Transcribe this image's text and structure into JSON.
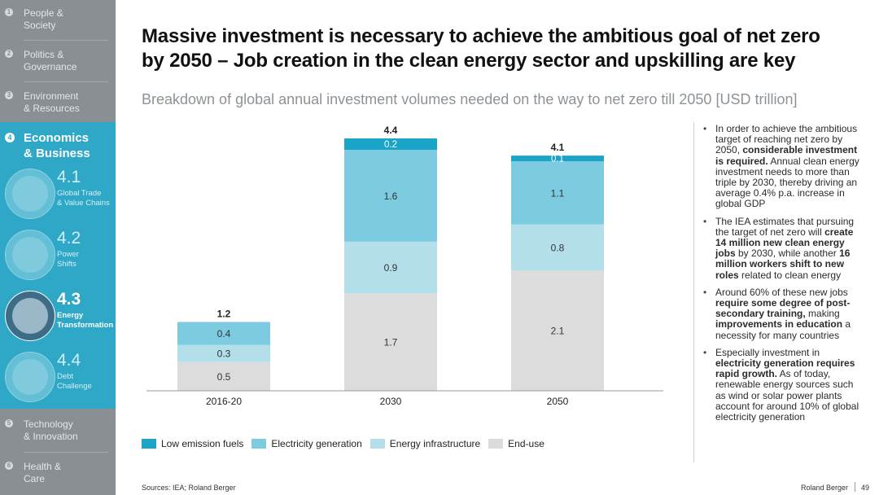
{
  "sidebar": {
    "items": [
      {
        "num": "1",
        "label_line1": "People &",
        "label_line2": "Society"
      },
      {
        "num": "2",
        "label_line1": "Politics &",
        "label_line2": "Governance"
      },
      {
        "num": "3",
        "label_line1": "Environment",
        "label_line2": "& Resources"
      },
      {
        "num": "5",
        "label_line1": "Technology",
        "label_line2": "& Innovation"
      },
      {
        "num": "6",
        "label_line1": "Health &",
        "label_line2": "Care"
      }
    ],
    "active_section": {
      "num": "4",
      "label_line1": "Economics",
      "label_line2": "& Business"
    },
    "subsections": [
      {
        "num": "4.1",
        "label_line1": "Global Trade",
        "label_line2": "& Value Chains"
      },
      {
        "num": "4.2",
        "label_line1": "Power",
        "label_line2": "Shifts"
      },
      {
        "num": "4.3",
        "label_line1": "Energy",
        "label_line2": "Transformation"
      },
      {
        "num": "4.4",
        "label_line1": "Debt",
        "label_line2": "Challenge"
      }
    ]
  },
  "header": {
    "title_line1": "Massive investment is necessary to achieve the ambitious goal of net zero",
    "title_line2": "by 2050 – Job creation in the clean energy sector and upskilling are key",
    "subtitle": "Breakdown of global annual investment volumes needed on the way to net zero till 2050 [USD trillion]"
  },
  "chart_data": {
    "type": "bar",
    "stacked": true,
    "categories": [
      "2016-20",
      "2030",
      "2050"
    ],
    "series": [
      {
        "name": "End-use",
        "values": [
          0.5,
          1.7,
          2.1
        ],
        "color": "#dcdcdc"
      },
      {
        "name": "Energy infrastructure",
        "values": [
          0.3,
          0.9,
          0.8
        ],
        "color": "#b3dfeb"
      },
      {
        "name": "Electricity generation",
        "values": [
          0.4,
          1.6,
          1.1
        ],
        "color": "#7ccbe0"
      },
      {
        "name": "Low emission fuels",
        "values": [
          0.0,
          0.2,
          0.1
        ],
        "color": "#1aa5c8"
      }
    ],
    "totals": [
      1.2,
      4.4,
      4.1
    ],
    "series_labels": [
      [
        "0.5",
        "1.7",
        "2.1"
      ],
      [
        "0.3",
        "0.9",
        "0.8"
      ],
      [
        "0.4",
        "1.6",
        "1.1"
      ],
      [
        "",
        "0.2",
        "0.1"
      ]
    ],
    "total_labels": [
      "1.2",
      "4.4",
      "4.1"
    ],
    "legend": [
      "Low emission fuels",
      "Electricity generation",
      "Energy infrastructure",
      "End-use"
    ],
    "legend_position": "bottom-left",
    "ylim": [
      0,
      4.4
    ],
    "title": "",
    "xlabel": "",
    "ylabel": ""
  },
  "bullets": [
    [
      {
        "t": "In order to achieve the ambitious target of reaching net zero by 2050, "
      },
      {
        "t": "considerable investment is required.",
        "b": true
      },
      {
        "t": " Annual clean energy investment needs to more than triple by 2030, thereby driving an average 0.4% p.a. increase in global GDP"
      }
    ],
    [
      {
        "t": "The IEA estimates that pursuing the target of net zero will "
      },
      {
        "t": "create 14 million new clean energy jobs",
        "b": true
      },
      {
        "t": " by 2030, while another "
      },
      {
        "t": "16 million workers shift to new roles",
        "b": true
      },
      {
        "t": " related to clean energy"
      }
    ],
    [
      {
        "t": "Around 60% of these new jobs "
      },
      {
        "t": "require some degree of post-secondary training,",
        "b": true
      },
      {
        "t": " making "
      },
      {
        "t": "improvements in education",
        "b": true
      },
      {
        "t": " a necessity for many countries"
      }
    ],
    [
      {
        "t": "Especially investment in "
      },
      {
        "t": "electricity generation requires rapid growth.",
        "b": true
      },
      {
        "t": " As of today, renewable energy sources such as wind or solar power plants account for around 10% of global electricity generation"
      }
    ]
  ],
  "footer": {
    "source": "Sources: IEA; Roland Berger",
    "brand": "Roland Berger",
    "page_number": "49"
  }
}
